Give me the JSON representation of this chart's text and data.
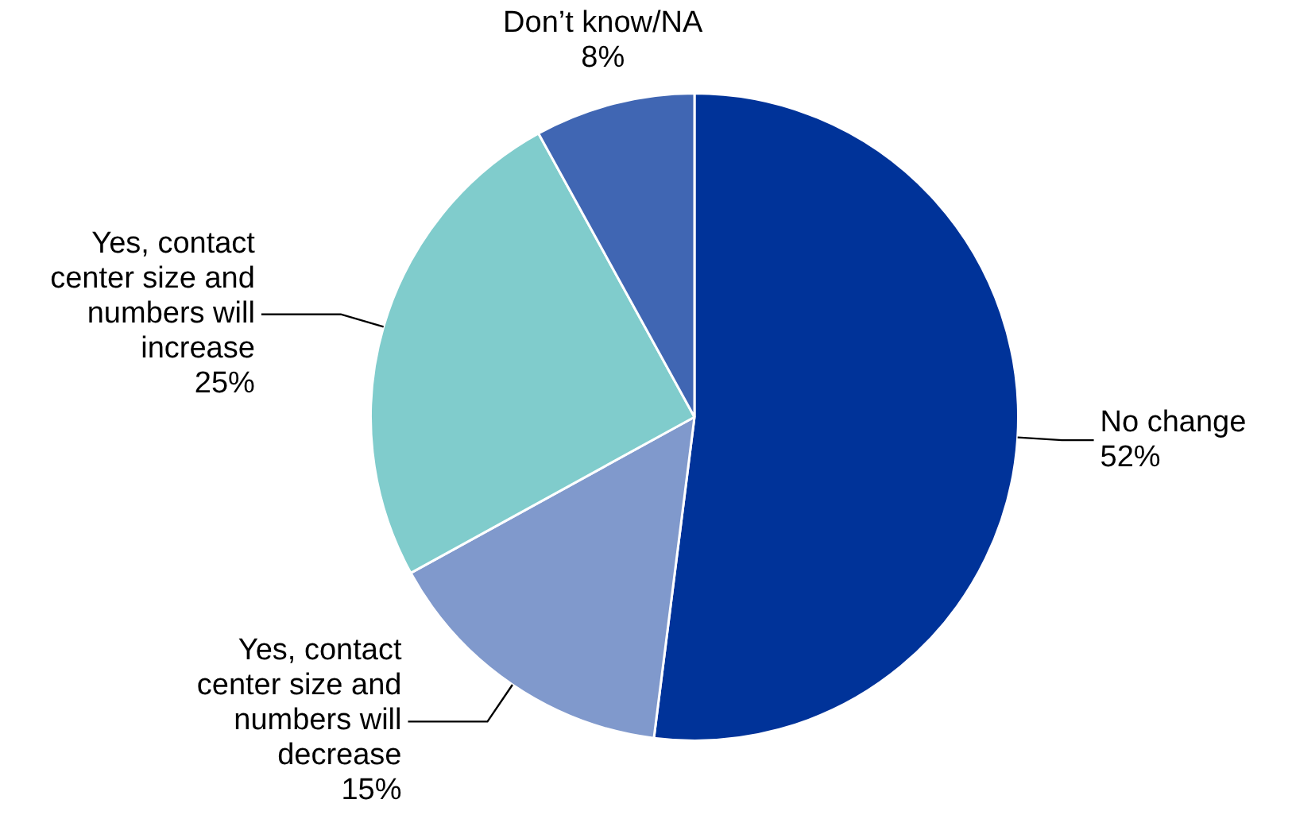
{
  "chart_data": {
    "type": "pie",
    "categories": [
      "No change",
      "Yes, contact center size and numbers will decrease",
      "Yes, contact center size and numbers will increase",
      "Don’t know/NA"
    ],
    "values": [
      52,
      15,
      25,
      8
    ],
    "colors": [
      "#003399",
      "#8099cc",
      "#80cccc",
      "#4066b3"
    ],
    "value_labels": [
      "52%",
      "15%",
      "25%",
      "8%"
    ],
    "legend": false
  }
}
